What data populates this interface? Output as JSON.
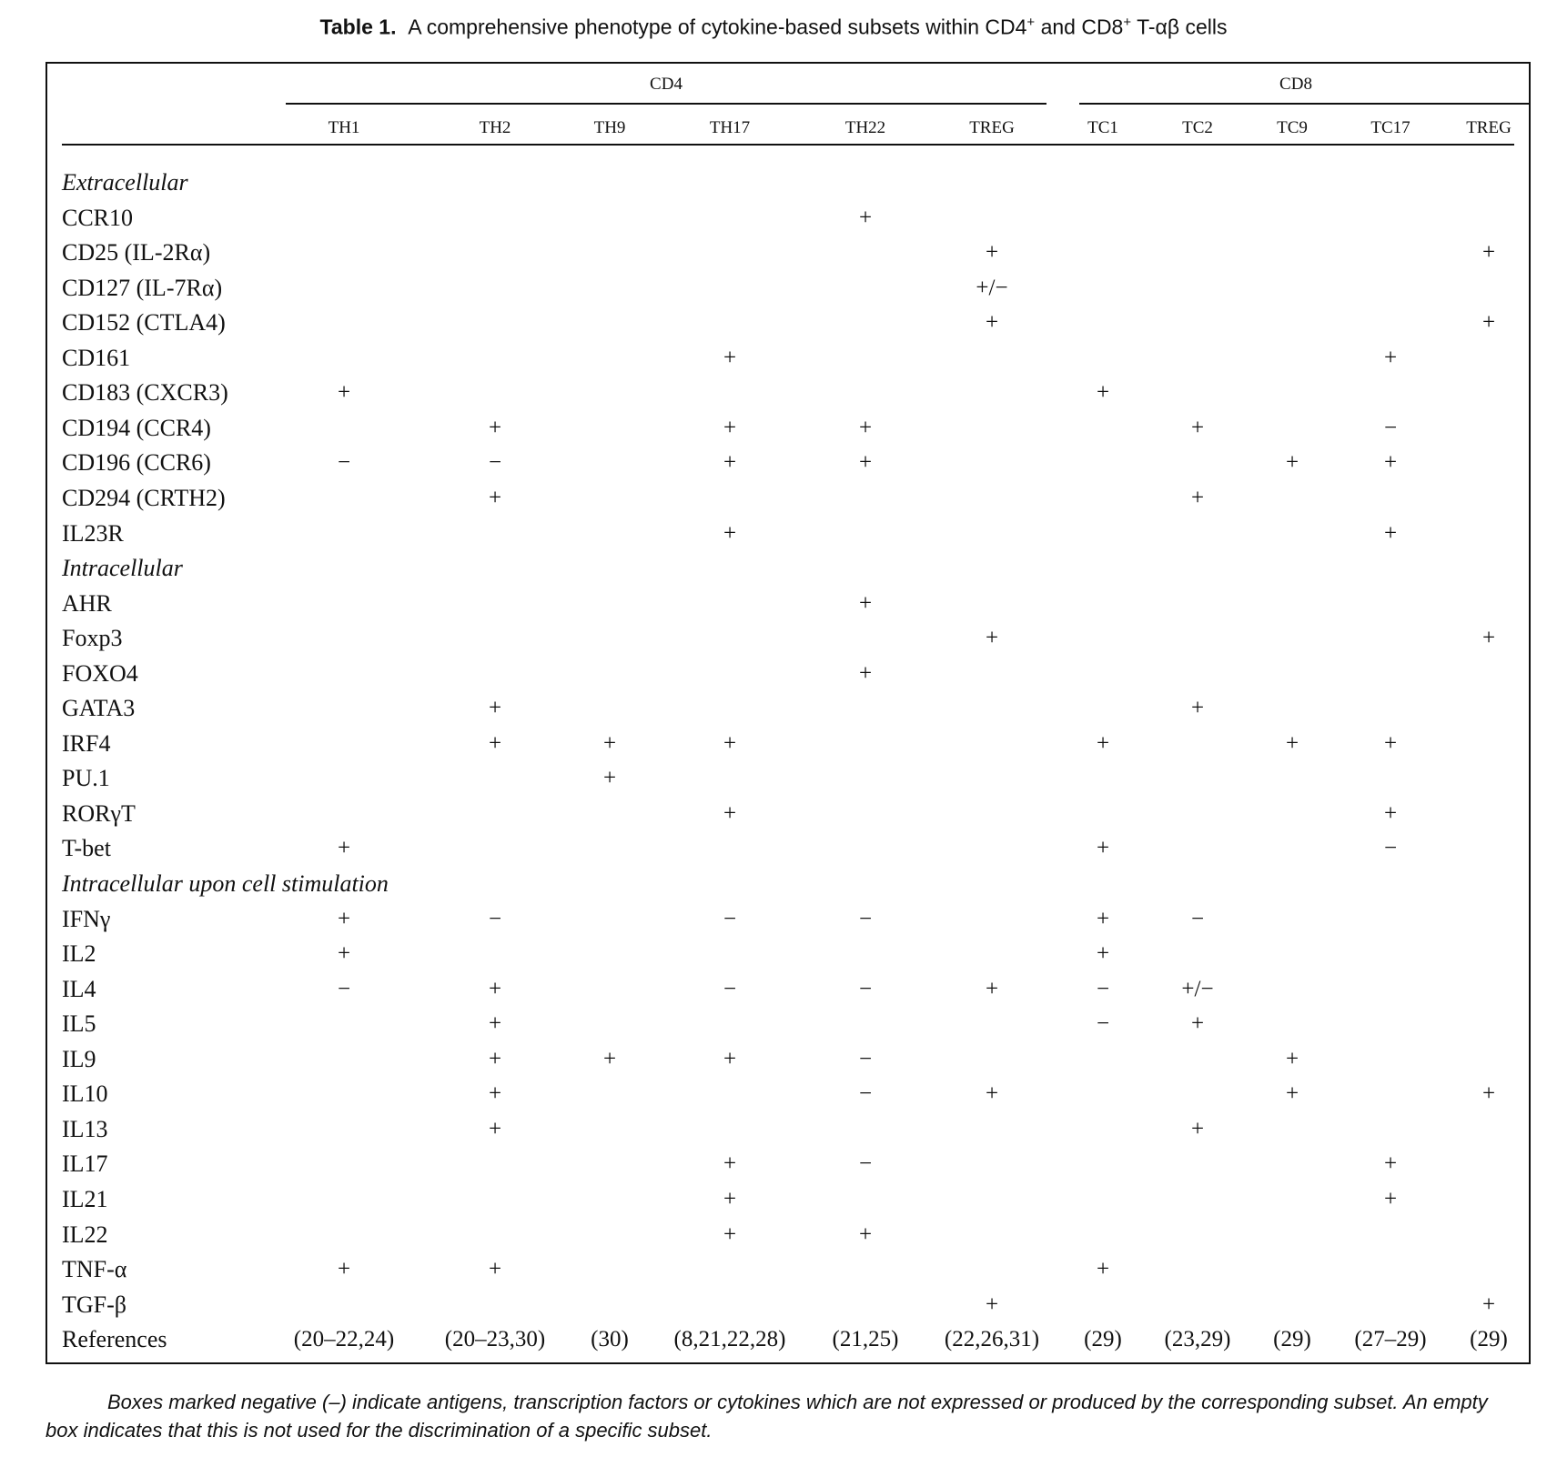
{
  "caption": {
    "label": "Table 1.",
    "text_part1": "A comprehensive phenotype of cytokine-based subsets within CD4",
    "sup1": "+",
    "text_part2": " and CD8",
    "sup2": "+",
    "text_part3": " T-αβ cells"
  },
  "groups": [
    "CD4",
    "CD8"
  ],
  "columns": [
    "TH1",
    "TH2",
    "TH9",
    "TH17",
    "TH22",
    "TREG",
    "TC1",
    "TC2",
    "TC9",
    "TC17",
    "TREG"
  ],
  "rows": [
    {
      "label": "Extracellular",
      "section": true
    },
    {
      "label": "CCR10",
      "cells": [
        "",
        "",
        "",
        "",
        "+",
        "",
        "",
        "",
        "",
        "",
        ""
      ]
    },
    {
      "label": "CD25 (IL-2Rα)",
      "cells": [
        "",
        "",
        "",
        "",
        "",
        "+",
        "",
        "",
        "",
        "",
        "+"
      ]
    },
    {
      "label": "CD127 (IL-7Rα)",
      "cells": [
        "",
        "",
        "",
        "",
        "",
        "+/−",
        "",
        "",
        "",
        "",
        ""
      ]
    },
    {
      "label": "CD152 (CTLA4)",
      "cells": [
        "",
        "",
        "",
        "",
        "",
        "+",
        "",
        "",
        "",
        "",
        "+"
      ]
    },
    {
      "label": "CD161",
      "cells": [
        "",
        "",
        "",
        "+",
        "",
        "",
        "",
        "",
        "",
        "+",
        ""
      ]
    },
    {
      "label": "CD183 (CXCR3)",
      "cells": [
        "+",
        "",
        "",
        "",
        "",
        "",
        "+",
        "",
        "",
        "",
        ""
      ]
    },
    {
      "label": "CD194 (CCR4)",
      "cells": [
        "",
        "+",
        "",
        "+",
        "+",
        "",
        "",
        "+",
        "",
        "−",
        ""
      ]
    },
    {
      "label": "CD196 (CCR6)",
      "cells": [
        "−",
        "−",
        "",
        "+",
        "+",
        "",
        "",
        "",
        "+",
        "+",
        ""
      ]
    },
    {
      "label": "CD294 (CRTH2)",
      "cells": [
        "",
        "+",
        "",
        "",
        "",
        "",
        "",
        "+",
        "",
        "",
        ""
      ]
    },
    {
      "label": "IL23R",
      "cells": [
        "",
        "",
        "",
        "+",
        "",
        "",
        "",
        "",
        "",
        "+",
        ""
      ]
    },
    {
      "label": "Intracellular",
      "section": true
    },
    {
      "label": "AHR",
      "cells": [
        "",
        "",
        "",
        "",
        "+",
        "",
        "",
        "",
        "",
        "",
        ""
      ]
    },
    {
      "label": "Foxp3",
      "cells": [
        "",
        "",
        "",
        "",
        "",
        "+",
        "",
        "",
        "",
        "",
        "+"
      ]
    },
    {
      "label": "FOXO4",
      "cells": [
        "",
        "",
        "",
        "",
        "+",
        "",
        "",
        "",
        "",
        "",
        ""
      ]
    },
    {
      "label": "GATA3",
      "cells": [
        "",
        "+",
        "",
        "",
        "",
        "",
        "",
        "+",
        "",
        "",
        ""
      ]
    },
    {
      "label": "IRF4",
      "cells": [
        "",
        "+",
        "+",
        "+",
        "",
        "",
        "+",
        "",
        "+",
        "+",
        ""
      ]
    },
    {
      "label": "PU.1",
      "cells": [
        "",
        "",
        "+",
        "",
        "",
        "",
        "",
        "",
        "",
        "",
        ""
      ]
    },
    {
      "label": "RORγT",
      "cells": [
        "",
        "",
        "",
        "+",
        "",
        "",
        "",
        "",
        "",
        "+",
        ""
      ]
    },
    {
      "label": "T-bet",
      "cells": [
        "+",
        "",
        "",
        "",
        "",
        "",
        "+",
        "",
        "",
        "−",
        ""
      ]
    },
    {
      "label": "Intracellular upon cell stimulation",
      "section": true
    },
    {
      "label": "IFNγ",
      "cells": [
        "+",
        "−",
        "",
        "−",
        "−",
        "",
        "+",
        "−",
        "",
        "",
        ""
      ]
    },
    {
      "label": "IL2",
      "cells": [
        "+",
        "",
        "",
        "",
        "",
        "",
        "+",
        "",
        "",
        "",
        ""
      ]
    },
    {
      "label": "IL4",
      "cells": [
        "−",
        "+",
        "",
        "−",
        "−",
        "+",
        "−",
        "+/−",
        "",
        "",
        ""
      ]
    },
    {
      "label": "IL5",
      "cells": [
        "",
        "+",
        "",
        "",
        "",
        "",
        "−",
        "+",
        "",
        "",
        ""
      ]
    },
    {
      "label": "IL9",
      "cells": [
        "",
        "+",
        "+",
        "+",
        "−",
        "",
        "",
        "",
        "+",
        "",
        ""
      ]
    },
    {
      "label": "IL10",
      "cells": [
        "",
        "+",
        "",
        "",
        "−",
        "+",
        "",
        "",
        "+",
        "",
        "+"
      ]
    },
    {
      "label": "IL13",
      "cells": [
        "",
        "+",
        "",
        "",
        "",
        "",
        "",
        "+",
        "",
        "",
        ""
      ]
    },
    {
      "label": "IL17",
      "cells": [
        "",
        "",
        "",
        "+",
        "−",
        "",
        "",
        "",
        "",
        "+",
        ""
      ]
    },
    {
      "label": "IL21",
      "cells": [
        "",
        "",
        "",
        "+",
        "",
        "",
        "",
        "",
        "",
        "+",
        ""
      ]
    },
    {
      "label": "IL22",
      "cells": [
        "",
        "",
        "",
        "+",
        "+",
        "",
        "",
        "",
        "",
        "",
        ""
      ]
    },
    {
      "label": "TNF-α",
      "cells": [
        "+",
        "+",
        "",
        "",
        "",
        "",
        "+",
        "",
        "",
        "",
        ""
      ]
    },
    {
      "label": "TGF-β",
      "cells": [
        "",
        "",
        "",
        "",
        "",
        "+",
        "",
        "",
        "",
        "",
        "+"
      ]
    },
    {
      "label": "References",
      "cells": [
        "(20–22,24)",
        "(20–23,30)",
        "(30)",
        "(8,21,22,28)",
        "(21,25)",
        "(22,26,31)",
        "(29)",
        "(23,29)",
        "(29)",
        "(27–29)",
        "(29)"
      ]
    }
  ],
  "footnote": "Boxes marked negative (–) indicate antigens, transcription factors or cytokines which are not expressed or produced by the corresponding subset. An empty box indicates that this is not used for the discrimination of a specific subset."
}
